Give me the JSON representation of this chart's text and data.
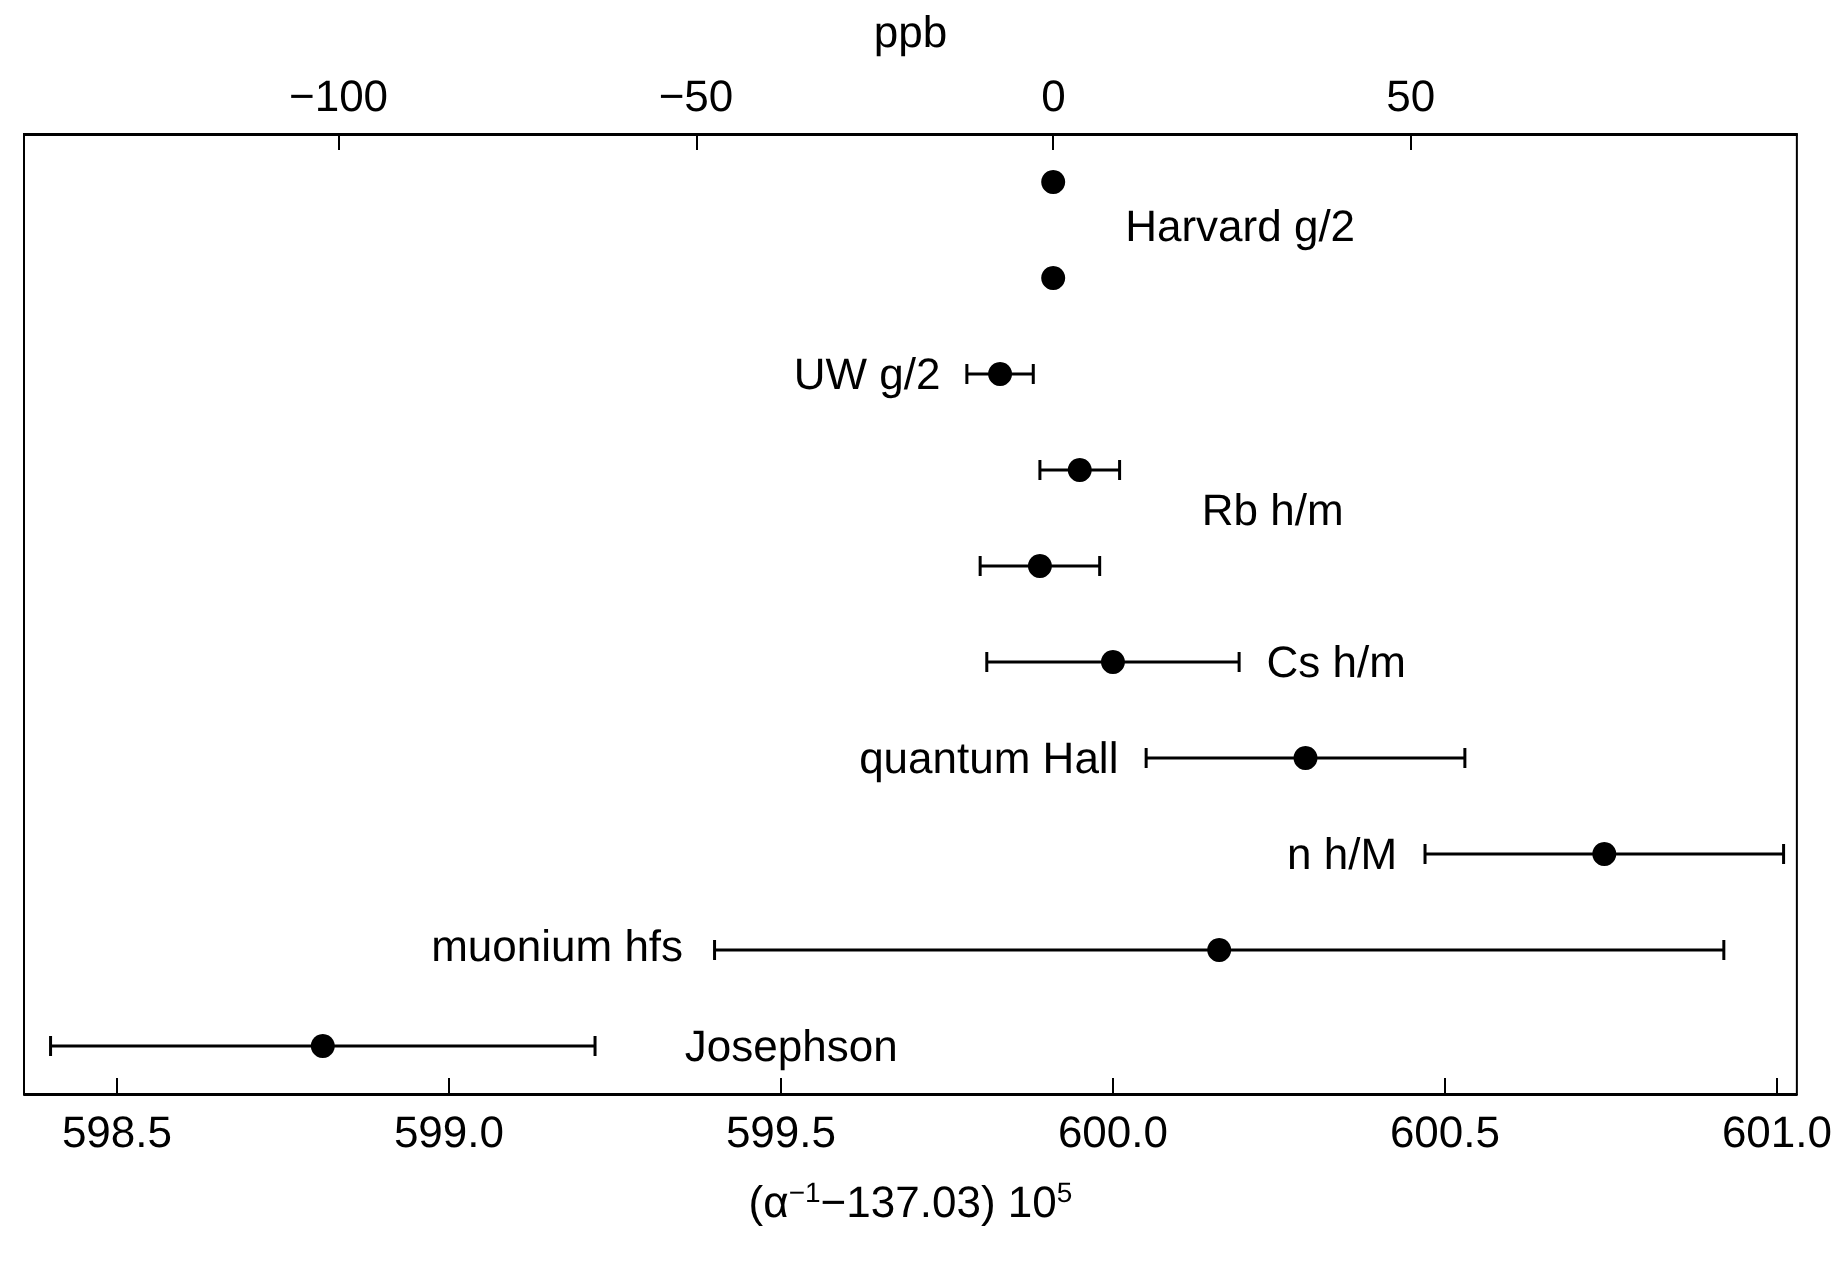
{
  "chart_data": {
    "type": "scatter",
    "orientation": "horizontal",
    "xlabel": "(α$^{−1}$−137.03) 10$^{5}$",
    "x2label": "ppb",
    "categories": [
      "Harvard g/2",
      null,
      "UW g/2",
      "Rb h/m",
      null,
      "Cs h/m",
      "quantum Hall",
      "n h/M",
      "muonium hfs",
      "Josephson"
    ],
    "values": [
      599.91,
      599.91,
      599.83,
      599.95,
      599.89,
      600.0,
      600.29,
      600.74,
      600.16,
      598.81
    ],
    "errors": [
      null,
      null,
      0.05,
      0.06,
      0.09,
      0.19,
      0.24,
      0.27,
      0.76,
      0.41
    ],
    "color": "#000000",
    "marker": "circle",
    "xlim": [
      598.36,
      601.03
    ],
    "xticks": [
      598.5,
      {
        "value": 599,
        "label": "599.0"
      },
      599.5,
      {
        "value": 600,
        "label": "600.0"
      },
      600.5,
      {
        "value": 601,
        "label": "601.0"
      }
    ],
    "x2lim": [
      -144,
      104
    ],
    "x2ticks": [
      {
        "value": -100,
        "label": "−100"
      },
      {
        "value": -50,
        "label": "−50"
      },
      0,
      50
    ]
  }
}
